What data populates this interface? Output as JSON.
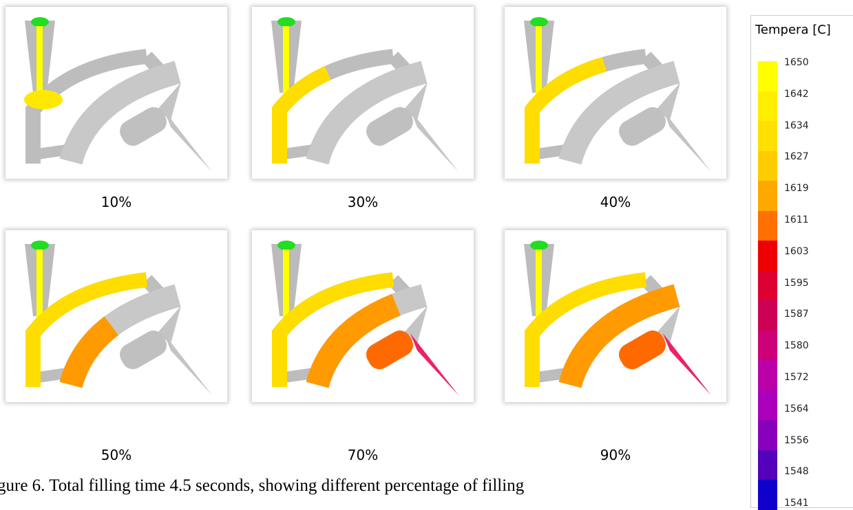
{
  "panels": [
    {
      "label": "10%"
    },
    {
      "label": "30%"
    },
    {
      "label": "40%"
    },
    {
      "label": "50%"
    },
    {
      "label": "70%"
    },
    {
      "label": "90%"
    }
  ],
  "caption": "gure 6. Total filling time 4.5 seconds, showing different percentage of filling",
  "legend": {
    "title": "Tempera [C]",
    "ticks": [
      "1650",
      "1642",
      "1634",
      "1627",
      "1619",
      "1611",
      "1603",
      "1595",
      "1587",
      "1580",
      "1572",
      "1564",
      "1556",
      "1548",
      "1541"
    ],
    "colors": [
      "#ffff00",
      "#ffee00",
      "#ffe000",
      "#ffcc00",
      "#ffa800",
      "#ff7000",
      "#ee0000",
      "#dd0033",
      "#cc0055",
      "#cc0077",
      "#bb00aa",
      "#aa00bb",
      "#8800bb",
      "#5500bb",
      "#1100cc"
    ]
  }
}
